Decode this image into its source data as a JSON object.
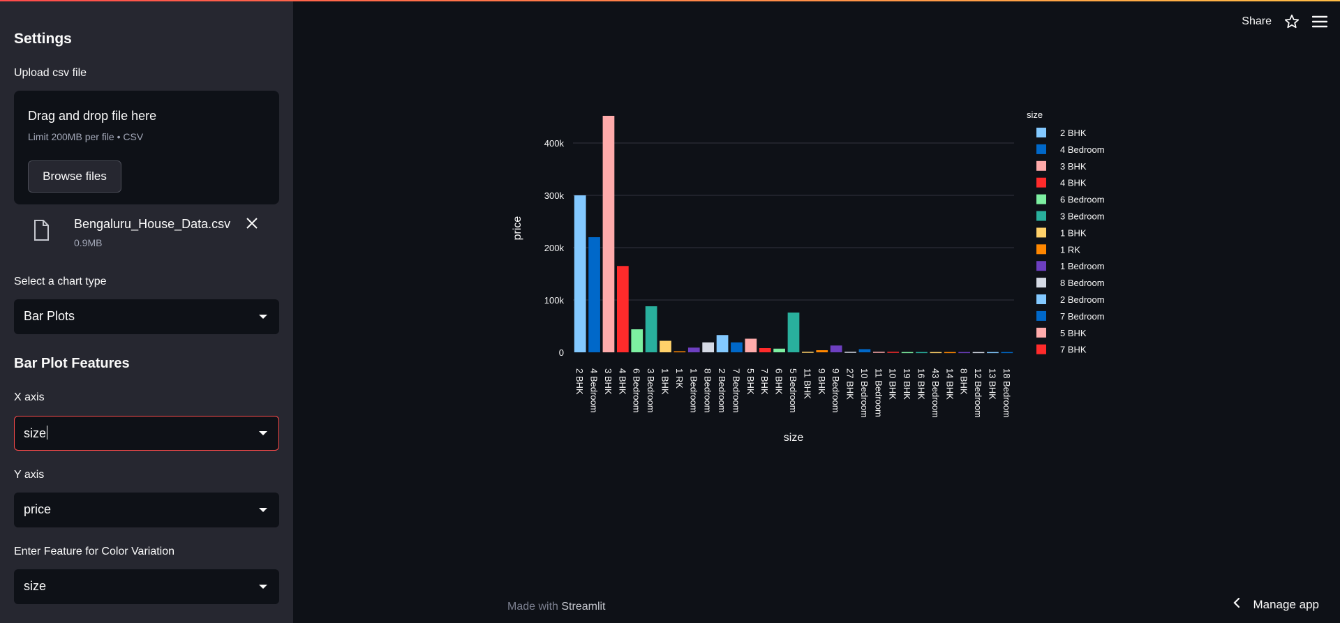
{
  "sidebar": {
    "title": "Settings",
    "upload_label": "Upload csv file",
    "dropzone": {
      "title": "Drag and drop file here",
      "limit": "Limit 200MB per file • CSV",
      "browse_label": "Browse files"
    },
    "file": {
      "name": "Bengaluru_House_Data.csv",
      "size": "0.9MB"
    },
    "chart_type": {
      "label": "Select a chart type",
      "value": "Bar Plots"
    },
    "section_title": "Bar Plot Features",
    "x_axis": {
      "label": "X axis",
      "value": "size"
    },
    "y_axis": {
      "label": "Y axis",
      "value": "price"
    },
    "color": {
      "label": "Enter Feature for Color Variation",
      "value": "size"
    }
  },
  "header": {
    "share_label": "Share"
  },
  "footer": {
    "made_with": "Made with",
    "brand": "Streamlit",
    "manage_label": "Manage app"
  },
  "colors": {
    "accent": "#ff4b4b",
    "sidebar_bg": "#262730",
    "main_bg": "#0e1117"
  },
  "chart_data": {
    "type": "bar",
    "xlabel": "size",
    "ylabel": "price",
    "legend_title": "size",
    "legend_position": "right",
    "ylim": [
      0,
      460000
    ],
    "yticks": [
      0,
      100000,
      200000,
      300000,
      400000
    ],
    "ytick_labels": [
      "0",
      "100k",
      "200k",
      "300k",
      "400k"
    ],
    "grid": true,
    "categories": [
      "2 BHK",
      "4 Bedroom",
      "3 BHK",
      "4 BHK",
      "6 Bedroom",
      "3 Bedroom",
      "1 BHK",
      "1 RK",
      "1 Bedroom",
      "8 Bedroom",
      "2 Bedroom",
      "7 Bedroom",
      "5 BHK",
      "7 BHK",
      "6 BHK",
      "5 Bedroom",
      "11 BHK",
      "9 BHK",
      "9 Bedroom",
      "27 BHK",
      "10 Bedroom",
      "11 Bedroom",
      "10 BHK",
      "19 BHK",
      "16 BHK",
      "43 Bedroom",
      "14 BHK",
      "8 BHK",
      "12 Bedroom",
      "13 BHK",
      "18 Bedroom"
    ],
    "values": [
      300000,
      220000,
      452000,
      165000,
      44000,
      88000,
      22000,
      2000,
      9000,
      19000,
      33000,
      19000,
      26000,
      8000,
      7000,
      76000,
      1000,
      4000,
      13000,
      1000,
      6000,
      1000,
      1000,
      500,
      500,
      500,
      500,
      500,
      500,
      500,
      500
    ],
    "colors": [
      "#83c9ff",
      "#0068c9",
      "#ffabab",
      "#ff2b2b",
      "#7defa1",
      "#29b09d",
      "#ffd16a",
      "#ff8700",
      "#6d3fc0",
      "#d5dae5",
      "#83c9ff",
      "#0068c9",
      "#ffabab",
      "#ff2b2b",
      "#7defa1",
      "#29b09d",
      "#ffd16a",
      "#ff8700",
      "#6d3fc0",
      "#d5dae5",
      "#0068c9",
      "#ffabab",
      "#ff2b2b",
      "#7defa1",
      "#29b09d",
      "#ffd16a",
      "#ff8700",
      "#6d3fc0",
      "#d5dae5",
      "#83c9ff",
      "#0068c9"
    ],
    "legend": [
      {
        "name": "2 BHK",
        "color": "#83c9ff"
      },
      {
        "name": "4 Bedroom",
        "color": "#0068c9"
      },
      {
        "name": "3 BHK",
        "color": "#ffabab"
      },
      {
        "name": "4 BHK",
        "color": "#ff2b2b"
      },
      {
        "name": "6 Bedroom",
        "color": "#7defa1"
      },
      {
        "name": "3 Bedroom",
        "color": "#29b09d"
      },
      {
        "name": "1 BHK",
        "color": "#ffd16a"
      },
      {
        "name": "1 RK",
        "color": "#ff8700"
      },
      {
        "name": "1 Bedroom",
        "color": "#6d3fc0"
      },
      {
        "name": "8 Bedroom",
        "color": "#d5dae5"
      },
      {
        "name": "2 Bedroom",
        "color": "#83c9ff"
      },
      {
        "name": "7 Bedroom",
        "color": "#0068c9"
      },
      {
        "name": "5 BHK",
        "color": "#ffabab"
      },
      {
        "name": "7 BHK",
        "color": "#ff2b2b"
      }
    ]
  }
}
